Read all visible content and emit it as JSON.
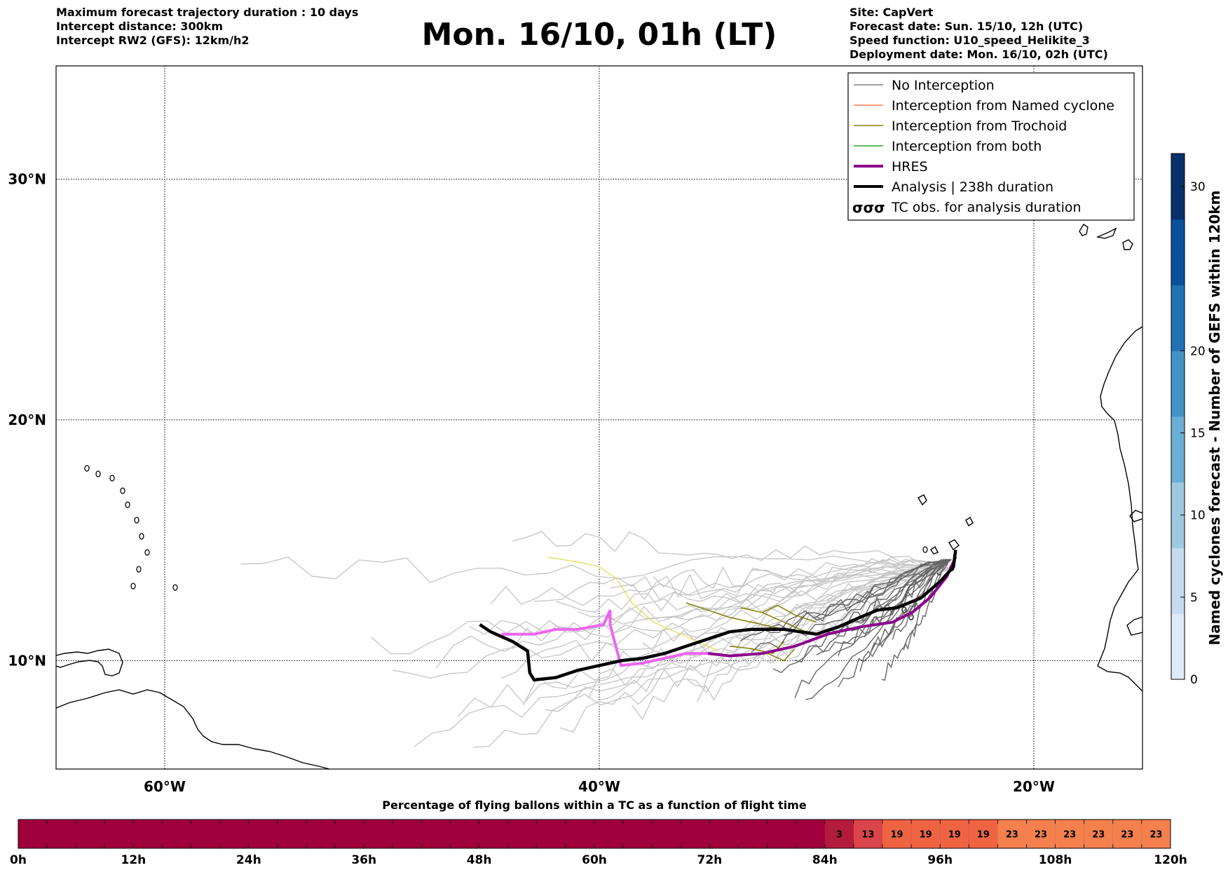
{
  "header": {
    "left_lines": [
      "Maximum forecast trajectory duration : 10 days",
      "Intercept distance: 300km",
      "Intercept RW2 (GFS):  12km/h2"
    ],
    "title": "Mon. 16/10, 01h (LT)",
    "right_lines": [
      "Site: CapVert",
      "Forecast date: Sun. 15/10, 12h (UTC)",
      "Speed function: U10_speed_Helikite_3",
      "Deployment date: Mon. 16/10, 02h (UTC)"
    ]
  },
  "chart_data": [
    {
      "type": "line",
      "kind": "map-trajectories",
      "lon_range": [
        -65,
        -15
      ],
      "lat_range": [
        5.5,
        34.7
      ],
      "grid": true,
      "x_ticks": [
        {
          "lon": -60,
          "label": "60°W"
        },
        {
          "lon": -40,
          "label": "40°W"
        },
        {
          "lon": -20,
          "label": "20°W"
        }
      ],
      "y_ticks": [
        {
          "lat": 30,
          "label": "30°N"
        },
        {
          "lat": 20,
          "label": "20°N"
        },
        {
          "lat": 10,
          "label": "10°N"
        }
      ],
      "legend_position": "top-right",
      "legend": [
        {
          "label": "No Interception",
          "color": "#808080",
          "style": "thin"
        },
        {
          "label": "Interception from Named cyclone",
          "color": "#ff7f50",
          "style": "thin"
        },
        {
          "label": "Interception from Trochoid",
          "color": "#808000",
          "style": "thin"
        },
        {
          "label": "Interception from both",
          "color": "#2ca02c",
          "style": "thin"
        },
        {
          "label": "HRES",
          "color": "#8b008b",
          "style": "thick"
        },
        {
          "label": "Analysis | 238h duration",
          "color": "#000000",
          "style": "thick"
        },
        {
          "label": "TC obs. for analysis duration",
          "color": "#000000",
          "style": "symbol"
        }
      ],
      "analysis_track": [
        [
          -23.6,
          14.6
        ],
        [
          -23.7,
          13.9
        ],
        [
          -24.3,
          13.3
        ],
        [
          -25.2,
          12.6
        ],
        [
          -26.3,
          12.2
        ],
        [
          -27.2,
          12.1
        ],
        [
          -28,
          11.8
        ],
        [
          -29,
          11.4
        ],
        [
          -30,
          11.1
        ],
        [
          -31.5,
          11.3
        ],
        [
          -33,
          11.3
        ],
        [
          -34,
          11.2
        ],
        [
          -35,
          10.9
        ],
        [
          -36,
          10.6
        ],
        [
          -37,
          10.3
        ],
        [
          -38,
          10.1
        ],
        [
          -39,
          10
        ],
        [
          -40,
          9.8
        ],
        [
          -41,
          9.6
        ],
        [
          -42,
          9.3
        ],
        [
          -43,
          9.2
        ],
        [
          -43.2,
          9.5
        ],
        [
          -43.3,
          10.4
        ],
        [
          -44,
          10.8
        ],
        [
          -45,
          11.2
        ],
        [
          -45.5,
          11.5
        ]
      ],
      "hres_track": [
        [
          -23.6,
          14.3
        ],
        [
          -24,
          13.5
        ],
        [
          -24.8,
          12.6
        ],
        [
          -25.6,
          12
        ],
        [
          -26.5,
          11.6
        ],
        [
          -28,
          11.4
        ],
        [
          -29.5,
          11.1
        ],
        [
          -31,
          10.6
        ],
        [
          -32.5,
          10.3
        ],
        [
          -34,
          10.2
        ],
        [
          -35,
          10.3
        ],
        [
          -36,
          10.3
        ],
        [
          -37,
          10.1
        ],
        [
          -38,
          9.9
        ],
        [
          -39,
          9.8
        ],
        [
          -39.3,
          10.8
        ],
        [
          -39.5,
          11.5
        ],
        [
          -39.5,
          12.1
        ],
        [
          -39.8,
          11.5
        ],
        [
          -41,
          11.3
        ],
        [
          -42,
          11.3
        ],
        [
          -43,
          11.1
        ],
        [
          -44,
          11.1
        ],
        [
          -44.5,
          11.1
        ]
      ],
      "hres_light_color": "#ee66ee",
      "hres_dark_color": "#8b008b",
      "trochoid_tracks": [
        [
          [
            -31,
            11.2
          ],
          [
            -32,
            11.4
          ],
          [
            -33,
            11.6
          ],
          [
            -34,
            11.8
          ],
          [
            -35,
            12.1
          ],
          [
            -36,
            12.4
          ]
        ],
        [
          [
            -30.5,
            11.2
          ],
          [
            -31.5,
            11.6
          ],
          [
            -32.5,
            12
          ],
          [
            -33.5,
            12.2
          ]
        ],
        [
          [
            -30,
            11.6
          ],
          [
            -31,
            11.9
          ],
          [
            -31.8,
            12.3
          ],
          [
            -32.5,
            12
          ]
        ],
        [
          [
            -31.5,
            10.8
          ],
          [
            -32,
            10.3
          ],
          [
            -33,
            10.5
          ],
          [
            -34,
            10.6
          ]
        ],
        [
          [
            -31,
            10.5
          ],
          [
            -31.5,
            10.0
          ],
          [
            -32.5,
            10.4
          ]
        ]
      ],
      "yellow_track": [
        [
          -34.5,
          10.4
        ],
        [
          -36,
          11
        ],
        [
          -37.5,
          11.6
        ],
        [
          -38.5,
          12.4
        ],
        [
          -39.2,
          13.4
        ],
        [
          -40,
          13.9
        ],
        [
          -41,
          14.1
        ],
        [
          -42.4,
          14.3
        ]
      ],
      "yellow_color": "#e5e060"
    },
    {
      "type": "heatmap",
      "kind": "colorbar",
      "label": "Named cyclones forecast - Number of GEFS within 120km",
      "range": [
        0,
        32
      ],
      "ticks": [
        0,
        5,
        10,
        15,
        20,
        30
      ],
      "colors": [
        "#deebf7",
        "#c6dbef",
        "#9ecae1",
        "#6baed6",
        "#4292c6",
        "#2171b5",
        "#08519c",
        "#08306b"
      ]
    },
    {
      "type": "bar",
      "kind": "timeline",
      "title": "Percentage of flying ballons within a TC as a function of flight time",
      "hours_range": [
        0,
        120
      ],
      "tick_labels": [
        "0h",
        "12h",
        "24h",
        "36h",
        "48h",
        "60h",
        "72h",
        "84h",
        "96h",
        "108h",
        "120h"
      ],
      "base_color": "#a0003c",
      "segments": [
        {
          "start": 84,
          "end": 87,
          "value": 3,
          "color": "#b31b3c"
        },
        {
          "start": 87,
          "end": 90,
          "value": 13,
          "color": "#d9454a"
        },
        {
          "start": 90,
          "end": 93,
          "value": 19,
          "color": "#ee6443"
        },
        {
          "start": 93,
          "end": 96,
          "value": 19,
          "color": "#ee6443"
        },
        {
          "start": 96,
          "end": 99,
          "value": 19,
          "color": "#ee6443"
        },
        {
          "start": 99,
          "end": 102,
          "value": 19,
          "color": "#ee6443"
        },
        {
          "start": 102,
          "end": 105,
          "value": 23,
          "color": "#f3804d"
        },
        {
          "start": 105,
          "end": 108,
          "value": 23,
          "color": "#f3804d"
        },
        {
          "start": 108,
          "end": 111,
          "value": 23,
          "color": "#f3804d"
        },
        {
          "start": 111,
          "end": 114,
          "value": 23,
          "color": "#f3804d"
        },
        {
          "start": 114,
          "end": 117,
          "value": 23,
          "color": "#f3804d"
        },
        {
          "start": 117,
          "end": 120,
          "value": 23,
          "color": "#f3804d"
        }
      ]
    }
  ]
}
